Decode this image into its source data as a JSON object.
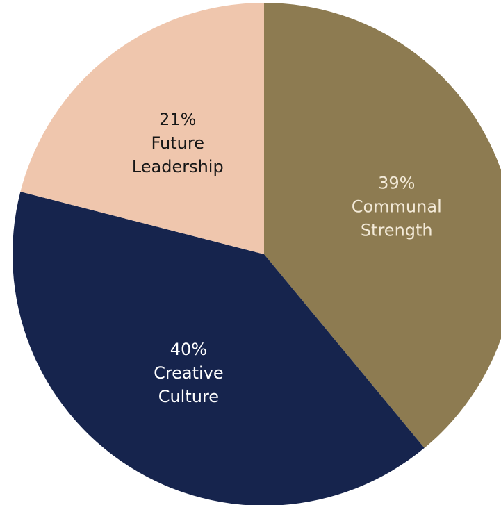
{
  "chart_data": {
    "type": "pie",
    "title": "",
    "start_angle_deg": 0,
    "direction": "clockwise",
    "slices": [
      {
        "label_lines": [
          "Communal",
          "Strength"
        ],
        "percent_label": "39%",
        "value": 39,
        "color": "#8d7b51",
        "text_color": "#f3ead8"
      },
      {
        "label_lines": [
          "Creative",
          "Culture"
        ],
        "percent_label": "40%",
        "value": 40,
        "color": "#16244d",
        "text_color": "#ffffff"
      },
      {
        "label_lines": [
          "Future",
          "Leadership"
        ],
        "percent_label": "21%",
        "value": 21,
        "color": "#efc6ad",
        "text_color": "#161616"
      }
    ]
  }
}
